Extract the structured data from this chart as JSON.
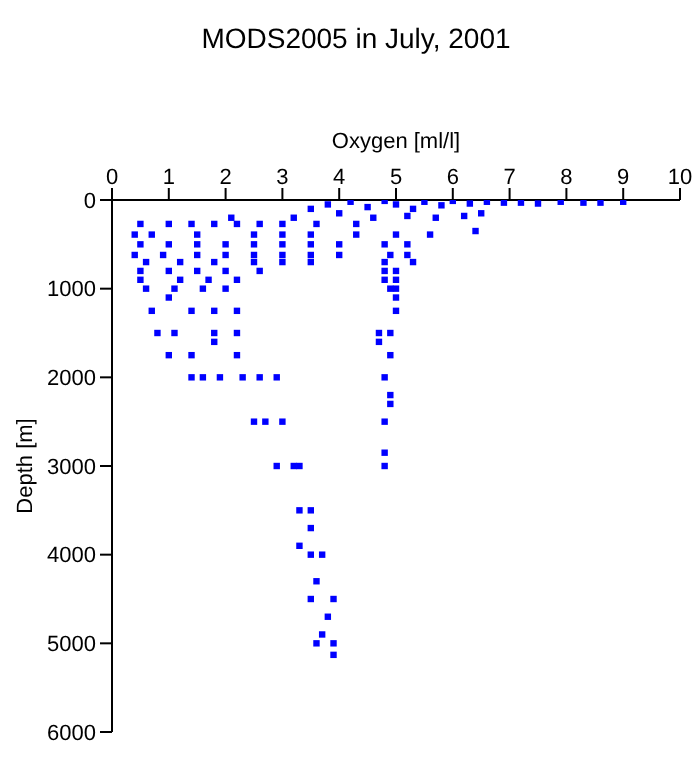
{
  "chart_data": {
    "type": "scatter",
    "title": "MODS2005 in July, 2001",
    "xlabel": "Oxygen [ml/l]",
    "ylabel": "Depth [m]",
    "xlim": [
      0,
      10
    ],
    "xticks": [
      0,
      1,
      2,
      3,
      4,
      5,
      6,
      7,
      8,
      9,
      10
    ],
    "ylim": [
      6000,
      0
    ],
    "yticks": [
      0,
      1000,
      2000,
      3000,
      4000,
      5000,
      6000
    ],
    "grid": false,
    "legend": false,
    "marker": "square",
    "series": [
      {
        "color": "#0000ff",
        "x": [
          3.5,
          3.8,
          4.2,
          4.5,
          4.8,
          5,
          5.3,
          5.5,
          5.8,
          6,
          6.3,
          6.6,
          6.9,
          7.2,
          7.5,
          7.9,
          8.3,
          8.6,
          9.0,
          3.2,
          4.0,
          4.6,
          5.2,
          5.7,
          6.2,
          6.5,
          3.0,
          3.6,
          4.3,
          6.4,
          2.1,
          0.5,
          1.0,
          1.4,
          1.8,
          2.2,
          2.6,
          0.4,
          0.7,
          1.5,
          2.5,
          3.0,
          3.5,
          4.3,
          5.0,
          5.6,
          0.5,
          1.0,
          1.5,
          2.0,
          2.5,
          3.0,
          3.5,
          4.0,
          4.8,
          5.2,
          0.4,
          0.9,
          1.5,
          2.0,
          2.5,
          3.0,
          3.5,
          4.0,
          4.9,
          5.2,
          0.6,
          1.2,
          1.8,
          2.5,
          3.0,
          3.5,
          4.8,
          5.3,
          0.5,
          1.0,
          1.5,
          2.0,
          2.6,
          4.8,
          5.0,
          0.5,
          1.2,
          1.7,
          2.2,
          4.8,
          5.0,
          0.6,
          1.1,
          1.6,
          2.0,
          4.9,
          5.0,
          1.0,
          5.0,
          0.7,
          1.4,
          1.8,
          2.2,
          5.0,
          0.8,
          1.1,
          1.8,
          2.2,
          4.7,
          4.9,
          4.7,
          1.8,
          1.0,
          1.4,
          2.2,
          4.9,
          1.4,
          1.6,
          1.9,
          2.3,
          2.6,
          2.9,
          4.8,
          4.9,
          4.9,
          2.5,
          2.7,
          3.0,
          4.8,
          4.8,
          2.9,
          3.2,
          3.3,
          4.8,
          3.3,
          3.5,
          3.5,
          3.3,
          3.5,
          3.7,
          3.6,
          3.5,
          3.9,
          3.8,
          3.7,
          3.6,
          3.9,
          3.9
        ],
        "values": [
          100,
          50,
          20,
          80,
          10,
          50,
          100,
          20,
          60,
          10,
          40,
          20,
          30,
          30,
          40,
          20,
          30,
          30,
          20,
          200,
          150,
          200,
          180,
          200,
          180,
          150,
          270,
          270,
          270,
          350,
          200,
          270,
          270,
          270,
          270,
          270,
          270,
          390,
          390,
          390,
          390,
          390,
          390,
          390,
          390,
          390,
          500,
          500,
          500,
          500,
          500,
          500,
          500,
          500,
          500,
          500,
          620,
          620,
          620,
          620,
          620,
          620,
          620,
          620,
          620,
          620,
          700,
          700,
          700,
          700,
          700,
          700,
          700,
          700,
          800,
          800,
          800,
          800,
          800,
          800,
          800,
          900,
          900,
          900,
          900,
          900,
          900,
          1000,
          1000,
          1000,
          1000,
          1000,
          1000,
          1100,
          1100,
          1250,
          1250,
          1250,
          1250,
          1250,
          1500,
          1500,
          1500,
          1500,
          1500,
          1500,
          1600,
          1600,
          1750,
          1750,
          1750,
          1750,
          2000,
          2000,
          2000,
          2000,
          2000,
          2000,
          2000,
          2200,
          2300,
          2500,
          2500,
          2500,
          2500,
          2850,
          3000,
          3000,
          3000,
          3000,
          3500,
          3500,
          3700,
          3900,
          4000,
          4000,
          4300,
          4500,
          4500,
          4700,
          4900,
          5000,
          5000,
          5130
        ]
      }
    ]
  }
}
